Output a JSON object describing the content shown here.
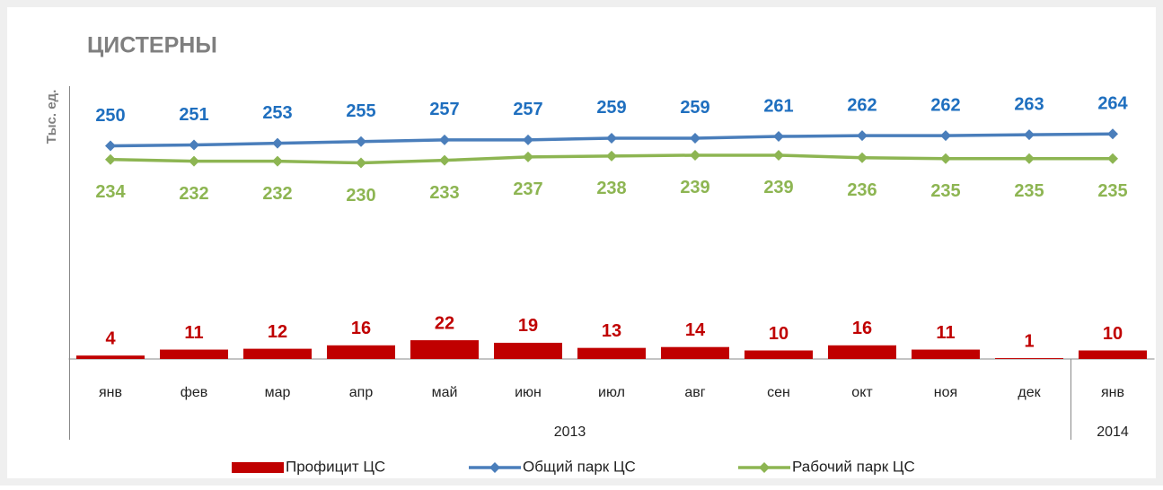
{
  "chart_data": {
    "type": "combo",
    "title": "ЦИСТЕРНЫ",
    "y_label": "Тыс. ед.",
    "categories": [
      {
        "label": "янв",
        "group": "2013"
      },
      {
        "label": "фев",
        "group": "2013"
      },
      {
        "label": "мар",
        "group": "2013"
      },
      {
        "label": "апр",
        "group": "2013"
      },
      {
        "label": "май",
        "group": "2013"
      },
      {
        "label": "июн",
        "group": "2013"
      },
      {
        "label": "июл",
        "group": "2013"
      },
      {
        "label": "авг",
        "group": "2013"
      },
      {
        "label": "сен",
        "group": "2013"
      },
      {
        "label": "окт",
        "group": "2013"
      },
      {
        "label": "ноя",
        "group": "2013"
      },
      {
        "label": "дек",
        "group": "2013"
      },
      {
        "label": "янв",
        "group": "2014"
      }
    ],
    "series": [
      {
        "name": "Профицит ЦС",
        "type": "bar",
        "color": "#c00000",
        "label_color": "#c00000",
        "label_position": "above",
        "values": [
          4,
          11,
          12,
          16,
          22,
          19,
          13,
          14,
          10,
          16,
          11,
          1,
          10
        ]
      },
      {
        "name": "Общий парк ЦС",
        "type": "line",
        "color": "#4a7ebb",
        "label_color": "#1f6fbf",
        "label_position": "above",
        "values": [
          250,
          251,
          253,
          255,
          257,
          257,
          259,
          259,
          261,
          262,
          262,
          263,
          264
        ]
      },
      {
        "name": "Рабочий парк ЦС",
        "type": "line",
        "color": "#8db552",
        "label_color": "#8db552",
        "label_position": "below",
        "values": [
          234,
          232,
          232,
          230,
          233,
          237,
          238,
          239,
          239,
          236,
          235,
          235,
          235
        ]
      }
    ],
    "ylim": [
      0,
      320
    ],
    "grid": false,
    "legend": "bottom"
  }
}
